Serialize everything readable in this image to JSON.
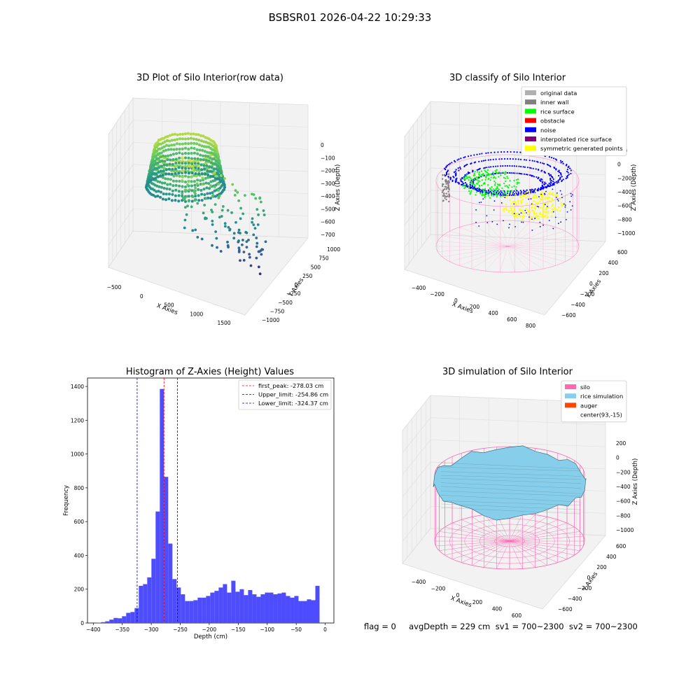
{
  "suptitle": "BSBSR01 2026-04-22 10:29:33",
  "colors": {
    "hist_fill": "#4d4dff",
    "first_peak": "#ff0000",
    "limits": "#0000cc",
    "silo": "#ff69b4",
    "rice_simulation": "#87ceeb",
    "auger": "#ff4500",
    "inner_wall": "#808080",
    "rice_surface": "#00ff00",
    "obstacle": "#ff0000",
    "noise": "#0000ff",
    "interpolated_rice_surface": "#800080",
    "symmetric_generated_points": "#ffff00",
    "original_data": "#b0b0b0"
  },
  "panel1": {
    "title": "3D Plot of Silo Interior(row data)",
    "xlabel": "X Axies",
    "ylabel": "Y Axies",
    "zlabel": "Z Axies (Depth)",
    "xticks": [
      "−500",
      "0",
      "500",
      "1000",
      "1500"
    ],
    "yticks": [
      "−1000",
      "−750",
      "−500",
      "−250",
      "0",
      "250",
      "500",
      "750",
      "1000"
    ],
    "zticks": [
      "0",
      "−100",
      "−200",
      "−300",
      "−400",
      "−500",
      "−600",
      "−700"
    ],
    "colormap": "viridis"
  },
  "panel2": {
    "title": "3D classify of Silo Interior",
    "xlabel": "X Axies",
    "ylabel": "Y Axies",
    "zlabel": "Z Axies (Depth)",
    "xticks": [
      "−400",
      "−200",
      "0",
      "200",
      "400",
      "600",
      "800"
    ],
    "yticks": [
      "−600",
      "−400",
      "−200",
      "0",
      "200",
      "400",
      "600"
    ],
    "zticks": [
      "200",
      "0",
      "−200",
      "−400",
      "−600",
      "−800",
      "−1000"
    ],
    "legend": [
      "original data",
      "inner wall",
      "rice surface",
      "obstacle",
      "noise",
      "interpolated rice surface",
      "symmetric generated points"
    ]
  },
  "panel4": {
    "title": "3D simulation of Silo Interior",
    "xlabel": "X Axies",
    "ylabel": "Y Axies",
    "zlabel": "Z Axies (Depth)",
    "xticks": [
      "−400",
      "−200",
      "0",
      "200",
      "400",
      "600"
    ],
    "yticks": [
      "−600",
      "−400",
      "−200",
      "0",
      "200",
      "400",
      "600"
    ],
    "zticks": [
      "200",
      "0",
      "−200",
      "−400",
      "−600",
      "−800",
      "−1000"
    ],
    "legend": [
      "silo",
      "rice simulation",
      "auger",
      "center(93,-15)"
    ]
  },
  "footer": "flag = 0     avgDepth = 229 cm  sv1 = 700~2300  sv2 = 700~2300",
  "chart_data": {
    "type": "bar",
    "title": "Histogram of Z-Axies (Height) Values",
    "xlabel": "Depth (cm)",
    "ylabel": "Frequency",
    "xlim": [
      -400,
      0
    ],
    "ylim": [
      0,
      1450
    ],
    "xticks": [
      -400,
      -350,
      -300,
      -250,
      -200,
      -150,
      -100,
      -50,
      0
    ],
    "yticks": [
      0,
      200,
      400,
      600,
      800,
      1000,
      1200,
      1400
    ],
    "bin_edges_start": -394,
    "bin_width": 7.25,
    "values": [
      2,
      5,
      10,
      20,
      30,
      28,
      40,
      60,
      65,
      88,
      220,
      230,
      270,
      380,
      660,
      1385,
      865,
      470,
      260,
      210,
      170,
      130,
      130,
      135,
      150,
      150,
      160,
      180,
      190,
      210,
      230,
      180,
      250,
      185,
      200,
      165,
      195,
      170,
      155,
      170,
      180,
      180,
      170,
      175,
      180,
      160,
      150,
      160,
      130,
      130,
      140,
      135,
      220
    ],
    "lines": [
      {
        "label": "first_peak: -278.03 cm",
        "x": -278.03,
        "color": "#ff0000"
      },
      {
        "label": "Upper_limit: -254.86 cm",
        "x": -254.86,
        "color": "#0000cc"
      },
      {
        "label": "Lower_limit: -324.37 cm",
        "x": -324.37,
        "color": "#0000cc"
      }
    ]
  }
}
